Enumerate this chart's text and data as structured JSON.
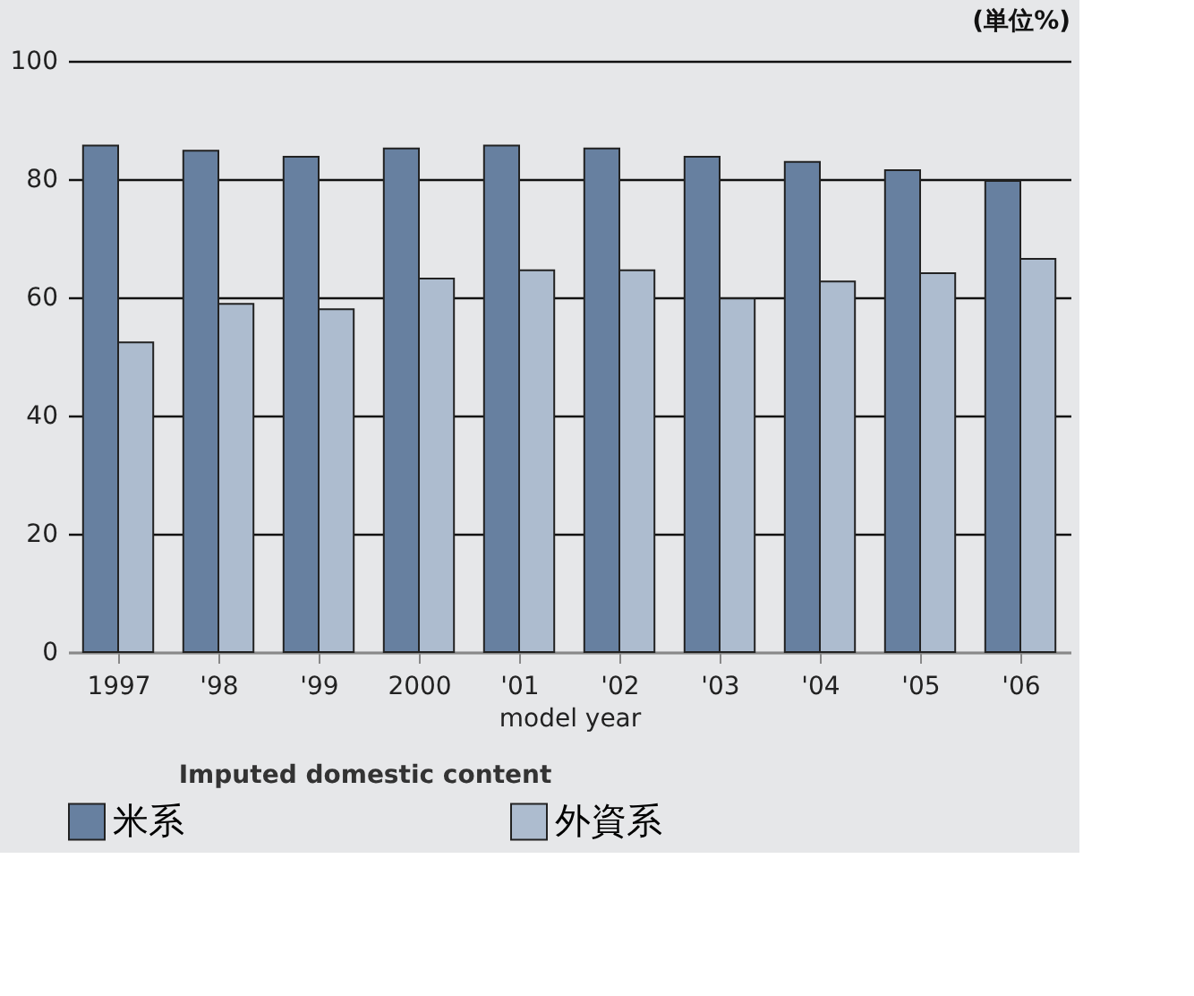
{
  "chart_data": {
    "type": "bar",
    "annotations": [
      "(単位%)"
    ],
    "xlabel": "model year",
    "legend_title": "Imputed domestic content",
    "categories": [
      "1997",
      "'98",
      "'99",
      "2000",
      "'01",
      "'02",
      "'03",
      "'04",
      "'05",
      "'06"
    ],
    "series": [
      {
        "name": "米系",
        "color": "#6780a0",
        "values": [
          85.7,
          84.8,
          83.8,
          85.2,
          85.7,
          85.2,
          83.8,
          82.9,
          81.5,
          79.7
        ]
      },
      {
        "name": "外資系",
        "color": "#adbccf",
        "values": [
          52.4,
          58.9,
          58.0,
          63.2,
          64.6,
          64.6,
          59.8,
          62.7,
          64.1,
          66.5
        ]
      }
    ],
    "ylim": [
      0,
      100
    ],
    "yticks": [
      0,
      20,
      40,
      60,
      80,
      100
    ],
    "grid": "y",
    "legend": "bottom"
  }
}
